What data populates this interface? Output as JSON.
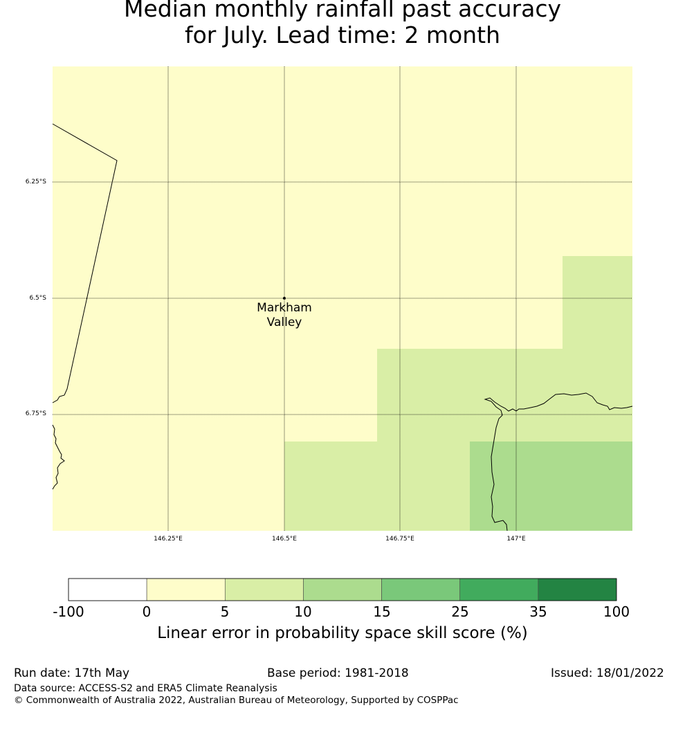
{
  "title": {
    "line1": "Median monthly rainfall past accuracy",
    "line2": "for July. Lead time: 2 month"
  },
  "map": {
    "lat_ticks": [
      "6.25°S",
      "6.5°S",
      "6.75°S"
    ],
    "lon_ticks": [
      "146.25°E",
      "146.5°E",
      "146.75°E",
      "147°E"
    ],
    "place_name_line1": "Markham",
    "place_name_line2": "Valley",
    "category_colors": {
      "0-5": "#fefdca",
      "5-10": "#d9eea6",
      "10-15": "#acdc8e"
    }
  },
  "colorbar": {
    "boundaries": [
      "-100",
      "0",
      "5",
      "10",
      "15",
      "25",
      "35",
      "100"
    ],
    "colors": [
      "#ffffff",
      "#fefdca",
      "#d9eea6",
      "#acdc8e",
      "#7ac87a",
      "#41ab5d",
      "#238443"
    ],
    "title": "Linear error in probability space skill score (%)"
  },
  "footer": {
    "run_date": "Run date: 17th May",
    "base_period": "Base period: 1981-2018",
    "issued": "Issued: 18/01/2022",
    "data_source": "Data source: ACCESS-S2 and ERA5 Climate Reanalysis",
    "copyright": "© Commonwealth of Australia 2022, Australian Bureau of Meteorology, Supported by COSPPac"
  }
}
